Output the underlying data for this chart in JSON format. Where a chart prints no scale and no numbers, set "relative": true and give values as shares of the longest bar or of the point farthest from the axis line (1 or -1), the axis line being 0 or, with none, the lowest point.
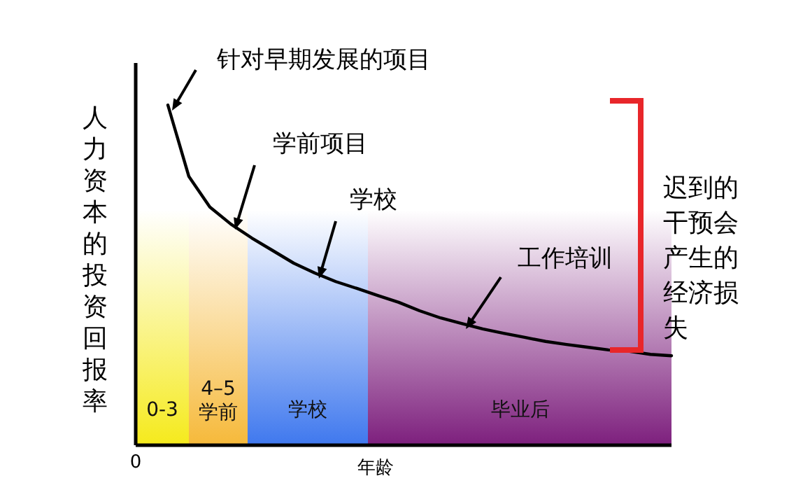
{
  "chart_data": {
    "type": "line",
    "relative": true,
    "xlabel": "年龄",
    "ylabel": "人力资本的投资回报率",
    "categories": [
      null,
      null,
      null,
      null,
      null,
      null,
      null,
      null,
      null,
      null,
      null,
      null,
      null,
      null,
      null,
      null,
      null,
      null,
      null,
      null,
      null,
      null,
      null,
      null,
      null
    ],
    "series": [
      {
        "color": "#000000",
        "values": [
          1,
          0.79,
          0.7,
          0.65,
          0.609,
          0.572,
          0.535,
          0.506,
          0.481,
          0.461,
          0.44,
          0.42,
          0.395,
          0.374,
          0.358,
          0.342,
          0.329,
          0.317,
          0.305,
          0.296,
          0.288,
          0.28,
          0.276,
          0.267,
          0.263
        ]
      }
    ],
    "annotations": [
      "0",
      "针对早期发展的项目",
      "学前项目",
      "学校",
      "工作培训",
      "0-3",
      "4–5 学前",
      "学校",
      "毕业后",
      "迟到的干预会产生的经济损失"
    ]
  }
}
